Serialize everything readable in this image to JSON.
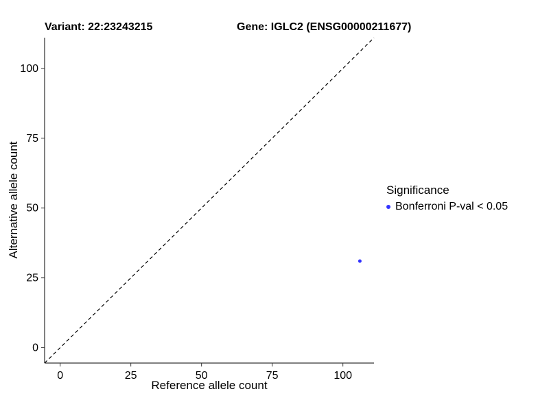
{
  "chart_data": {
    "type": "scatter",
    "title_variant": "Variant: 22:23243215",
    "title_gene": "Gene: IGLC2 (ENSG00000211677)",
    "xlabel": "Reference allele count",
    "ylabel": "Alternative allele count",
    "xlim": [
      -5.5,
      111
    ],
    "ylim": [
      -5.5,
      111
    ],
    "xticks": [
      0,
      25,
      50,
      75,
      100
    ],
    "yticks": [
      0,
      25,
      50,
      75,
      100
    ],
    "grid": false,
    "axis_color": "#000000",
    "tick_color": "#333333",
    "identity_line": {
      "style": "dashed",
      "color": "#000000",
      "from": [
        -5.5,
        -5.5
      ],
      "to": [
        111,
        111
      ]
    },
    "series": [
      {
        "name": "Bonferroni P-val < 0.05",
        "color": "#3333FF",
        "point_radius": 2.5,
        "points": [
          {
            "x": 106,
            "y": 31
          }
        ]
      }
    ],
    "legend": {
      "title": "Significance",
      "position": "right",
      "entries": [
        {
          "label": "Bonferroni P-val < 0.05",
          "color": "#3333FF"
        }
      ]
    }
  }
}
